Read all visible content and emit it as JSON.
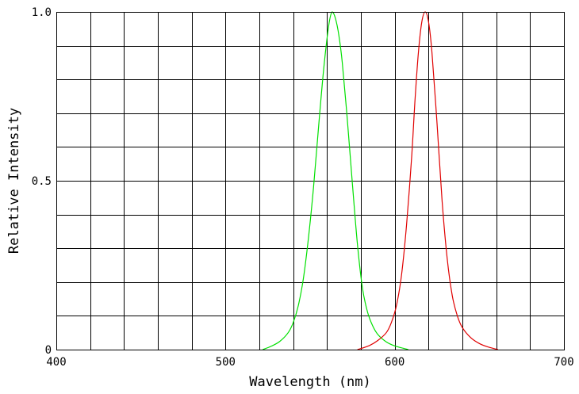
{
  "chart_data": {
    "type": "line",
    "title": "",
    "xlabel": "Wavelength (nm)",
    "ylabel": "Relative Intensity",
    "xlim": [
      400,
      700
    ],
    "ylim": [
      0,
      1.0
    ],
    "x_ticks": [
      400,
      500,
      600,
      700
    ],
    "x_tick_labels": [
      "400",
      "500",
      "600",
      "700"
    ],
    "y_ticks": [
      0,
      0.5,
      1.0
    ],
    "y_tick_labels": [
      "0",
      "0.5",
      "1.0"
    ],
    "x_grid_step": 20,
    "y_grid_step": 0.1,
    "grid": true,
    "legend": "none",
    "series": [
      {
        "color": "#00e000",
        "x": [
          522,
          527,
          532,
          537,
          540,
          543,
          546,
          549,
          552,
          555,
          558,
          561,
          563,
          565,
          567,
          569,
          572,
          575,
          578,
          581,
          584,
          587,
          590,
          595,
          600,
          605,
          608
        ],
        "y": [
          0.0,
          0.01,
          0.024,
          0.05,
          0.08,
          0.13,
          0.21,
          0.33,
          0.48,
          0.66,
          0.83,
          0.96,
          1.0,
          0.98,
          0.93,
          0.85,
          0.68,
          0.49,
          0.31,
          0.18,
          0.11,
          0.07,
          0.045,
          0.023,
          0.011,
          0.004,
          0.0
        ]
      },
      {
        "color": "#e00000",
        "x": [
          578,
          585,
          590,
          595,
          598,
          601,
          604,
          607,
          610,
          612,
          614,
          616,
          618,
          620,
          622,
          625,
          628,
          631,
          634,
          637,
          640,
          645,
          650,
          655,
          661
        ],
        "y": [
          0.0,
          0.012,
          0.027,
          0.05,
          0.08,
          0.13,
          0.22,
          0.37,
          0.57,
          0.74,
          0.88,
          0.97,
          1.0,
          0.97,
          0.88,
          0.67,
          0.44,
          0.27,
          0.16,
          0.1,
          0.065,
          0.035,
          0.018,
          0.008,
          0.0
        ]
      }
    ]
  }
}
